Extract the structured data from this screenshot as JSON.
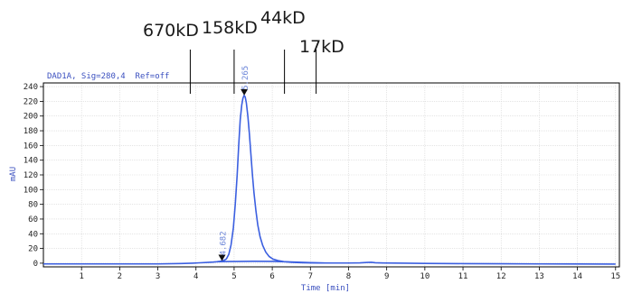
{
  "chart_data": {
    "type": "line",
    "signal_label": "DAD1A, Sig=280,4  Ref=off",
    "xlabel": "Time [min]",
    "ylabel": "mAU",
    "xlim": [
      0,
      15.1
    ],
    "ylim": [
      -5,
      245
    ],
    "x_ticks": [
      1,
      2,
      3,
      4,
      5,
      6,
      7,
      8,
      9,
      10,
      11,
      12,
      13,
      14,
      15
    ],
    "y_ticks": [
      0,
      20,
      40,
      60,
      80,
      100,
      120,
      140,
      160,
      180,
      200,
      220,
      240
    ],
    "grid": true,
    "series": [
      {
        "color": "#3b5fe0",
        "x": [
          0,
          1,
          2,
          3,
          3.6,
          3.9,
          4.1,
          4.3,
          4.45,
          4.55,
          4.62,
          4.68,
          4.74,
          4.8,
          4.86,
          4.92,
          4.98,
          5.03,
          5.08,
          5.12,
          5.16,
          5.2,
          5.23,
          5.26,
          5.29,
          5.32,
          5.36,
          5.4,
          5.44,
          5.48,
          5.52,
          5.57,
          5.62,
          5.68,
          5.75,
          5.83,
          5.92,
          6.02,
          6.15,
          6.3,
          6.5,
          6.8,
          7.2,
          7.6,
          8.0,
          8.3,
          8.5,
          8.6,
          8.7,
          8.9,
          9.5,
          10,
          11,
          12,
          13,
          14,
          15
        ],
        "y": [
          -1,
          -1,
          -1,
          -1,
          -0.5,
          0,
          0.5,
          1,
          1.5,
          2,
          2.5,
          3,
          4,
          6,
          12,
          25,
          48,
          80,
          120,
          160,
          195,
          215,
          224,
          228,
          226,
          218,
          200,
          176,
          148,
          120,
          96,
          72,
          52,
          36,
          24,
          15,
          9,
          5.5,
          3.5,
          2.2,
          1.2,
          0.6,
          0.3,
          0.2,
          0.2,
          0.4,
          1,
          1.2,
          0.6,
          0.3,
          0,
          -0.3,
          -0.6,
          -0.8,
          -1,
          -1.1,
          -1.2
        ]
      },
      {
        "color": "#3b5fe0",
        "x": [
          4.55,
          5,
          5.5,
          6,
          6.5,
          7,
          7.4
        ],
        "y": [
          2,
          2.3,
          2.6,
          2.4,
          1.6,
          0.8,
          0.2
        ]
      }
    ],
    "annotations": [
      {
        "text": "4.682",
        "x": 4.682,
        "y": 3
      },
      {
        "text": "5.265",
        "x": 5.265,
        "y": 228
      }
    ],
    "markers": [
      {
        "text": "670kD",
        "x": 3.85
      },
      {
        "text": "158kD",
        "x": 5.0
      },
      {
        "text": "44kD",
        "x": 6.32
      },
      {
        "text": "17kD",
        "x": 7.15
      }
    ]
  }
}
